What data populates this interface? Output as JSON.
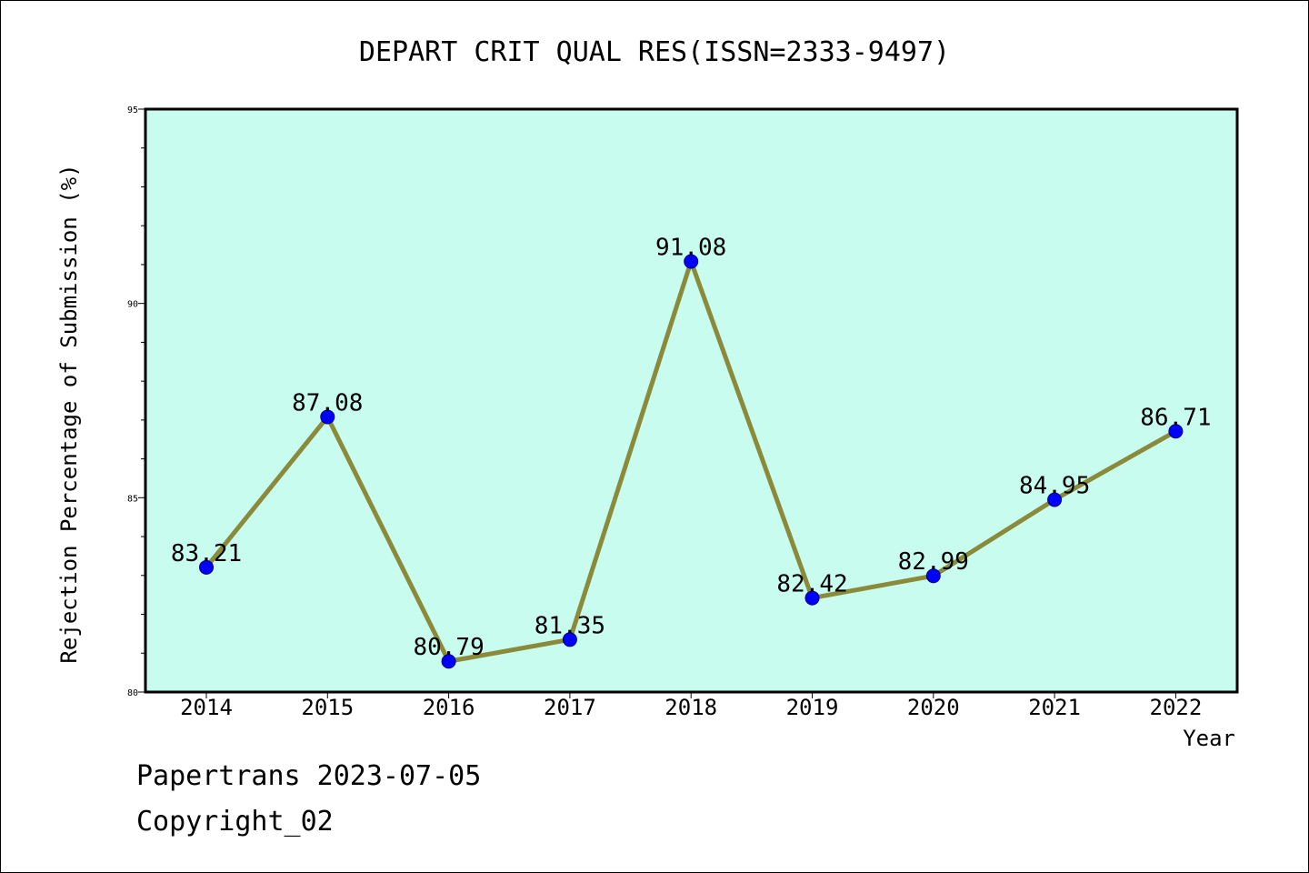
{
  "chart_data": {
    "type": "line",
    "title": "DEPART CRIT QUAL RES(ISSN=2333-9497)",
    "xlabel": "Year",
    "ylabel": "Rejection Percentage of Submission (%)",
    "categories": [
      "2014",
      "2015",
      "2016",
      "2017",
      "2018",
      "2019",
      "2020",
      "2021",
      "2022"
    ],
    "series": [
      {
        "values": [
          83.21,
          87.08,
          80.79,
          81.35,
          91.08,
          82.42,
          82.99,
          84.95,
          86.71
        ],
        "labels": [
          "83.21",
          "87.08",
          "80.79",
          "81.35",
          "91.08",
          "82.42",
          "82.99",
          "84.95",
          "86.71"
        ]
      }
    ],
    "ylim": [
      80,
      95
    ],
    "yticks": [
      80,
      85,
      90,
      95
    ],
    "ytick_labels": [
      "80",
      "85",
      "90",
      "95"
    ],
    "grid": false,
    "legend": "none",
    "colors": {
      "plot_background": "#c7fcee",
      "line": "#8b8a3a",
      "marker": "#0000ff"
    }
  },
  "footer": {
    "line1": "Papertrans 2023-07-05",
    "line2": "Copyright_02"
  }
}
